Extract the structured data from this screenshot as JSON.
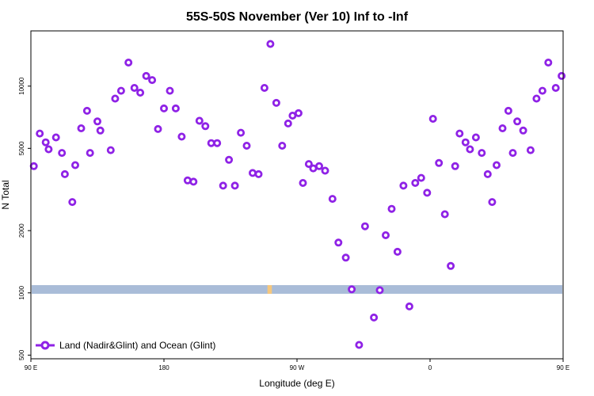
{
  "chart_data": {
    "type": "scatter",
    "title": "55S-50S November (Ver 10)   Inf to -Inf",
    "xlabel": "Longitude (deg E)",
    "ylabel": "N Total",
    "y_scale": "log",
    "xlim": [
      90,
      450
    ],
    "ylim": [
      480,
      18500
    ],
    "x_ticks": [
      {
        "value": 90,
        "label": "90 E"
      },
      {
        "value": 180,
        "label": "180"
      },
      {
        "value": 270,
        "label": "90 W"
      },
      {
        "value": 360,
        "label": "0"
      },
      {
        "value": 450,
        "label": "90 E"
      },
      {
        "value": 540,
        "label": "180"
      }
    ],
    "y_ticks": [
      {
        "value": 500,
        "label": "500"
      },
      {
        "value": 1000,
        "label": "1000"
      },
      {
        "value": 2000,
        "label": "2000"
      },
      {
        "value": 5000,
        "label": "5000"
      },
      {
        "value": 10000,
        "label": "10000"
      }
    ],
    "band": {
      "y_low": 990,
      "y_high": 1090,
      "color": "#a9bcd8"
    },
    "band_highlight": {
      "x_from": 250,
      "x_to": 253,
      "color": "#f5c77e"
    },
    "legend": {
      "label": "Land (Nadir&Glint) and Ocean (Glint)",
      "position": "bottom-left"
    },
    "series": [
      {
        "name": "Land (Nadir&Glint) and Ocean (Glint)",
        "color": "#8f22e6",
        "points": [
          [
            92,
            4100
          ],
          [
            96,
            5900
          ],
          [
            100,
            5350
          ],
          [
            102,
            4950
          ],
          [
            107,
            5650
          ],
          [
            111,
            4750
          ],
          [
            113,
            3750
          ],
          [
            118,
            2750
          ],
          [
            120,
            4150
          ],
          [
            124,
            6250
          ],
          [
            128,
            7600
          ],
          [
            130,
            4750
          ],
          [
            135,
            6750
          ],
          [
            137,
            6100
          ],
          [
            144,
            4900
          ],
          [
            147,
            8700
          ],
          [
            151,
            9500
          ],
          [
            156,
            13000
          ],
          [
            160,
            9800
          ],
          [
            164,
            9300
          ],
          [
            168,
            11200
          ],
          [
            172,
            10700
          ],
          [
            176,
            6200
          ],
          [
            180,
            7800
          ],
          [
            184,
            9500
          ],
          [
            188,
            7800
          ],
          [
            192,
            5700
          ],
          [
            196,
            3500
          ],
          [
            200,
            3450
          ],
          [
            204,
            6800
          ],
          [
            208,
            6400
          ],
          [
            212,
            5300
          ],
          [
            216,
            5300
          ],
          [
            220,
            3300
          ],
          [
            224,
            4400
          ],
          [
            228,
            3300
          ],
          [
            232,
            5950
          ],
          [
            236,
            5150
          ],
          [
            240,
            3800
          ],
          [
            244,
            3750
          ],
          [
            248,
            9800
          ],
          [
            252,
            16000
          ],
          [
            256,
            8300
          ],
          [
            260,
            5150
          ],
          [
            264,
            6600
          ],
          [
            267,
            7200
          ],
          [
            271,
            7400
          ],
          [
            274,
            3400
          ],
          [
            278,
            4200
          ],
          [
            281,
            4000
          ],
          [
            285,
            4100
          ],
          [
            289,
            3900
          ],
          [
            294,
            2850
          ],
          [
            298,
            1750
          ],
          [
            303,
            1480
          ],
          [
            307,
            1040
          ],
          [
            312,
            560
          ],
          [
            316,
            2100
          ],
          [
            322,
            760
          ],
          [
            326,
            1030
          ],
          [
            330,
            1900
          ],
          [
            334,
            2550
          ],
          [
            338,
            1580
          ],
          [
            342,
            3300
          ],
          [
            346,
            860
          ],
          [
            350,
            3400
          ],
          [
            354,
            3600
          ],
          [
            358,
            3050
          ],
          [
            362,
            6950
          ],
          [
            366,
            4250
          ],
          [
            370,
            2400
          ],
          [
            374,
            1350
          ],
          [
            377,
            4100
          ],
          [
            380,
            5900
          ],
          [
            384,
            5350
          ],
          [
            387,
            4950
          ],
          [
            391,
            5650
          ],
          [
            395,
            4750
          ],
          [
            399,
            3750
          ],
          [
            402,
            2750
          ],
          [
            405,
            4150
          ],
          [
            409,
            6250
          ],
          [
            413,
            7600
          ],
          [
            416,
            4750
          ],
          [
            419,
            6750
          ],
          [
            423,
            6100
          ],
          [
            428,
            4900
          ],
          [
            432,
            8700
          ],
          [
            436,
            9500
          ],
          [
            440,
            13000
          ],
          [
            445,
            9800
          ],
          [
            449,
            11200
          ]
        ]
      }
    ]
  }
}
